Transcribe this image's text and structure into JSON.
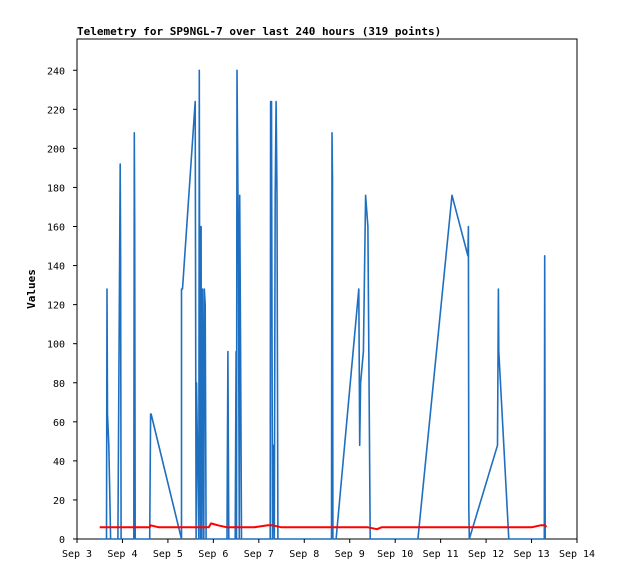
{
  "chart_data": {
    "type": "line",
    "title": "Telemetry for SP9NGL-7 over last 240 hours (319 points)",
    "xlabel": "",
    "ylabel": "Values",
    "xlim": [
      3.0,
      14.0
    ],
    "ylim": [
      0,
      256
    ],
    "x_ticks": [
      3,
      4,
      5,
      6,
      7,
      8,
      9,
      10,
      11,
      12,
      13,
      14
    ],
    "x_tick_labels": [
      "Sep 3",
      "Sep 4",
      "Sep 5",
      "Sep 6",
      "Sep 7",
      "Sep 8",
      "Sep 9",
      "Sep 10",
      "Sep 11",
      "Sep 12",
      "Sep 13",
      "Sep 14"
    ],
    "y_ticks": [
      0,
      20,
      40,
      60,
      80,
      100,
      120,
      140,
      160,
      180,
      200,
      220,
      240
    ],
    "y_tick_labels": [
      "0",
      "20",
      "40",
      "60",
      "80",
      "100",
      "120",
      "140",
      "160",
      "180",
      "200",
      "220",
      "240"
    ],
    "grid": false,
    "legend": "none",
    "series": [
      {
        "color": "#1f6fc0",
        "x": [
          3.5,
          3.65,
          3.66,
          3.67,
          3.7,
          3.72,
          3.74,
          3.78,
          3.9,
          3.95,
          3.96,
          3.97,
          4.0,
          4.25,
          4.26,
          4.27,
          4.28,
          4.6,
          4.62,
          4.63,
          5.3,
          5.3,
          5.32,
          5.6,
          5.62,
          5.63,
          5.68,
          5.69,
          5.7,
          5.72,
          5.73,
          5.74,
          5.76,
          5.78,
          5.79,
          5.8,
          5.82,
          5.84,
          5.86,
          5.88,
          5.9,
          5.92,
          5.93,
          6.0,
          6.3,
          6.32,
          6.34,
          6.36,
          6.4,
          6.45,
          6.48,
          6.5,
          6.51,
          6.52,
          6.55,
          6.57,
          6.58,
          6.6,
          6.62,
          6.64,
          6.66,
          6.68,
          7.0,
          7.25,
          7.26,
          7.27,
          7.28,
          7.3,
          7.32,
          7.34,
          7.36,
          7.38,
          7.4,
          7.42,
          7.44,
          7.46,
          7.47,
          7.5,
          8.0,
          8.6,
          8.61,
          8.62,
          8.63,
          8.64,
          8.7,
          9.2,
          9.22,
          9.24,
          9.3,
          9.35,
          9.4,
          9.45,
          9.46,
          9.48,
          9.7,
          10.5,
          11.25,
          11.6,
          11.61,
          11.62,
          11.63,
          12.25,
          12.27,
          12.28,
          12.5,
          13.0,
          13.28,
          13.29,
          13.3,
          13.32
        ],
        "y": [
          0,
          0,
          128,
          64,
          48,
          25,
          0,
          0,
          0,
          192,
          145,
          0,
          0,
          0,
          208,
          160,
          0,
          0,
          64,
          64,
          0,
          128,
          128,
          224,
          0,
          80,
          0,
          240,
          100,
          0,
          160,
          0,
          128,
          0,
          0,
          128,
          120,
          0,
          0,
          0,
          0,
          0,
          0,
          0,
          0,
          96,
          0,
          0,
          0,
          0,
          0,
          96,
          0,
          240,
          145,
          0,
          176,
          96,
          0,
          0,
          0,
          0,
          0,
          0,
          224,
          160,
          224,
          0,
          48,
          0,
          176,
          224,
          176,
          0,
          0,
          0,
          0,
          0,
          0,
          0,
          208,
          184,
          0,
          0,
          0,
          128,
          48,
          80,
          96,
          176,
          160,
          0,
          0,
          0,
          0,
          0,
          176,
          145,
          160,
          16,
          0,
          48,
          128,
          96,
          0,
          0,
          0,
          145,
          0,
          0
        ]
      },
      {
        "color": "#ff0000",
        "x": [
          3.5,
          4.0,
          4.6,
          4.62,
          4.8,
          5.3,
          5.6,
          5.9,
          5.95,
          6.1,
          6.3,
          6.6,
          6.9,
          7.2,
          7.3,
          7.5,
          8.0,
          8.6,
          9.0,
          9.4,
          9.6,
          9.7,
          10.0,
          11.0,
          12.0,
          12.5,
          13.0,
          13.2,
          13.3,
          13.32
        ],
        "y": [
          6,
          6,
          6,
          7,
          6,
          6,
          6,
          6,
          8,
          7,
          6,
          6,
          6,
          7,
          7,
          6,
          6,
          6,
          6,
          6,
          5,
          6,
          6,
          6,
          6,
          6,
          6,
          7,
          7,
          6
        ]
      }
    ]
  }
}
